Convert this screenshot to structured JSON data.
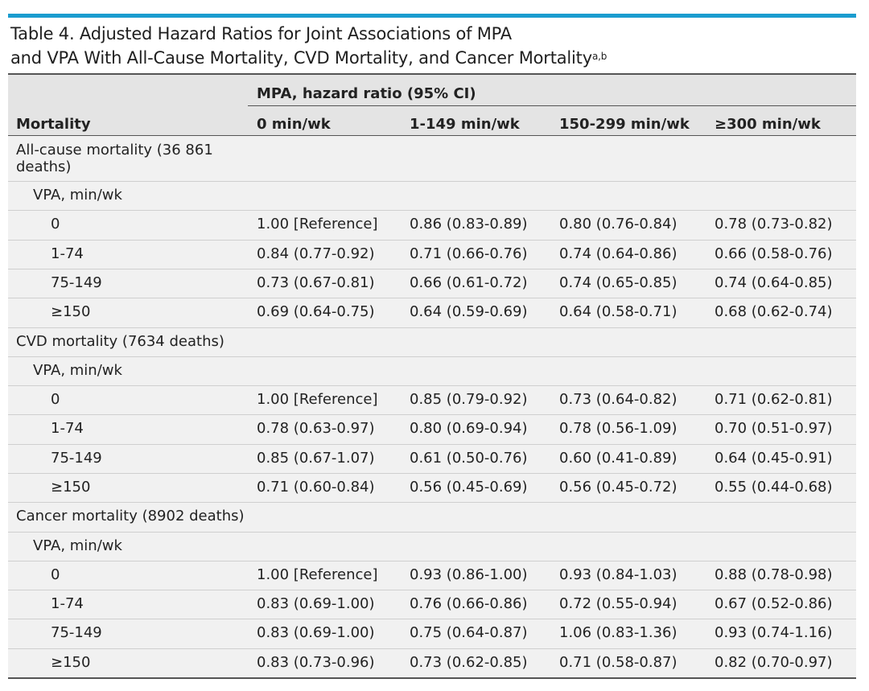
{
  "title_line1": "Table 4. Adjusted Hazard Ratios for Joint Associations of MPA",
  "title_line2": "and VPA With All-Cause Mortality, CVD Mortality, and Cancer Mortality",
  "title_sup": "a,b",
  "header": {
    "group_label": "MPA, hazard ratio (95% CI)",
    "row_label": "Mortality",
    "columns": [
      "0 min/wk",
      "1-149 min/wk",
      "150-299 min/wk",
      "≥300 min/wk"
    ]
  },
  "sections": [
    {
      "label_line1": "All-cause mortality (36 861",
      "label_line2": "deaths)",
      "vpa_label": "VPA, min/wk",
      "rows": [
        {
          "level": "0",
          "values": [
            "1.00 [Reference]",
            "0.86 (0.83-0.89)",
            "0.80 (0.76-0.84)",
            "0.78 (0.73-0.82)"
          ]
        },
        {
          "level": "1-74",
          "values": [
            "0.84 (0.77-0.92)",
            "0.71 (0.66-0.76)",
            "0.74 (0.64-0.86)",
            "0.66 (0.58-0.76)"
          ]
        },
        {
          "level": "75-149",
          "values": [
            "0.73 (0.67-0.81)",
            "0.66 (0.61-0.72)",
            "0.74 (0.65-0.85)",
            "0.74 (0.64-0.85)"
          ]
        },
        {
          "level": "≥150",
          "values": [
            "0.69 (0.64-0.75)",
            "0.64 (0.59-0.69)",
            "0.64 (0.58-0.71)",
            "0.68 (0.62-0.74)"
          ]
        }
      ]
    },
    {
      "label_line1": "CVD mortality (7634 deaths)",
      "label_line2": "",
      "vpa_label": "VPA, min/wk",
      "rows": [
        {
          "level": "0",
          "values": [
            "1.00 [Reference]",
            "0.85 (0.79-0.92)",
            "0.73 (0.64-0.82)",
            "0.71 (0.62-0.81)"
          ]
        },
        {
          "level": "1-74",
          "values": [
            "0.78 (0.63-0.97)",
            "0.80 (0.69-0.94)",
            "0.78 (0.56-1.09)",
            "0.70 (0.51-0.97)"
          ]
        },
        {
          "level": "75-149",
          "values": [
            "0.85 (0.67-1.07)",
            "0.61 (0.50-0.76)",
            "0.60 (0.41-0.89)",
            "0.64 (0.45-0.91)"
          ]
        },
        {
          "level": "≥150",
          "values": [
            "0.71 (0.60-0.84)",
            "0.56 (0.45-0.69)",
            "0.56 (0.45-0.72)",
            "0.55 (0.44-0.68)"
          ]
        }
      ]
    },
    {
      "label_line1": "Cancer mortality (8902 deaths)",
      "label_line2": "",
      "vpa_label": "VPA, min/wk",
      "rows": [
        {
          "level": "0",
          "values": [
            "1.00 [Reference]",
            "0.93 (0.86-1.00)",
            "0.93 (0.84-1.03)",
            "0.88 (0.78-0.98)"
          ]
        },
        {
          "level": "1-74",
          "values": [
            "0.83 (0.69-1.00)",
            "0.76 (0.66-0.86)",
            "0.72 (0.55-0.94)",
            "0.67 (0.52-0.86)"
          ]
        },
        {
          "level": "75-149",
          "values": [
            "0.83 (0.69-1.00)",
            "0.75 (0.64-0.87)",
            "1.06 (0.83-1.36)",
            "0.93 (0.74-1.16)"
          ]
        },
        {
          "level": "≥150",
          "values": [
            "0.83 (0.73-0.96)",
            "0.73 (0.62-0.85)",
            "0.71 (0.58-0.87)",
            "0.82 (0.70-0.97)"
          ]
        }
      ]
    }
  ]
}
